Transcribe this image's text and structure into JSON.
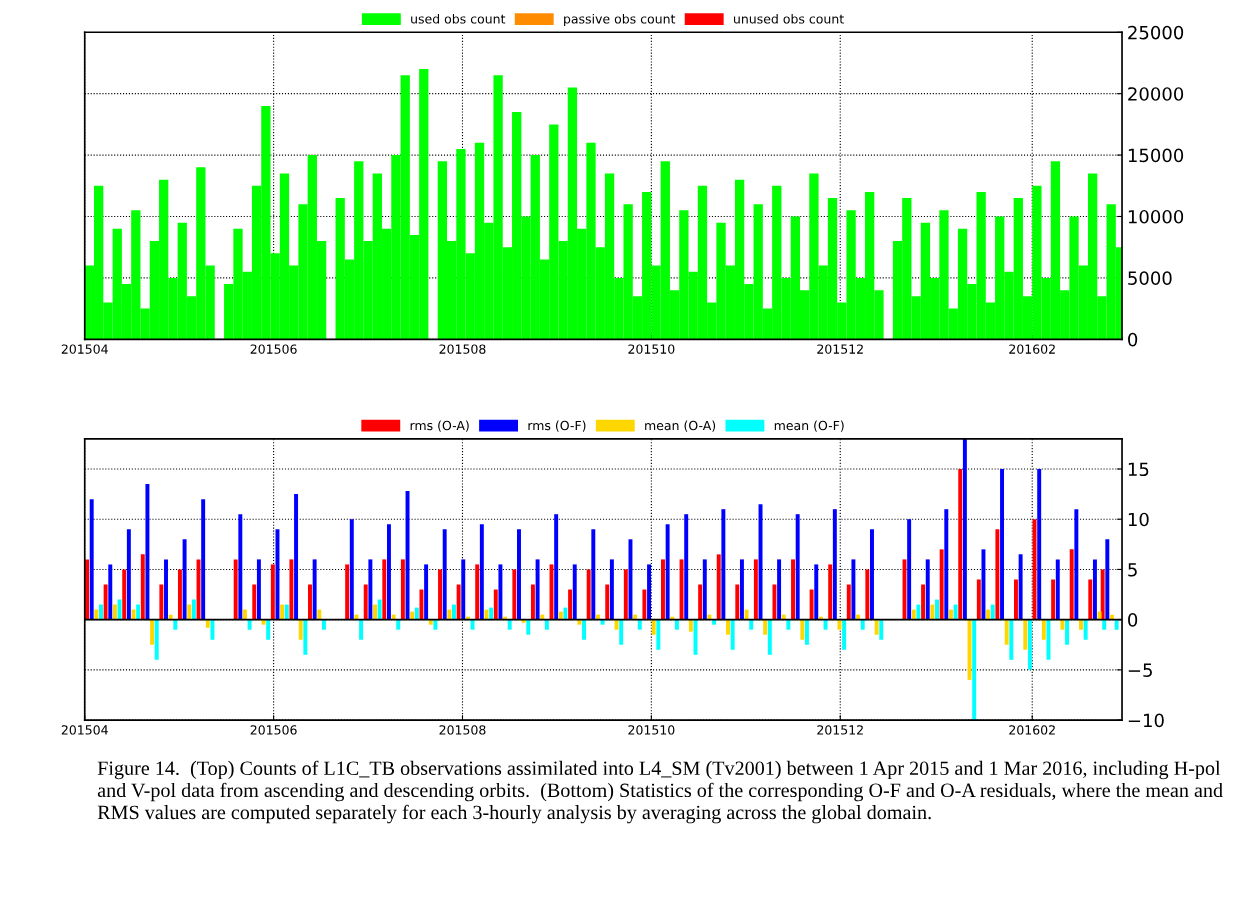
{
  "chart_data": [
    {
      "type": "bar",
      "legend": "top",
      "grid": true,
      "xlim": [
        "2015-04-01",
        "2016-03-01"
      ],
      "xticks": [
        {
          "value": "2015-04-01",
          "label": "201504"
        },
        {
          "value": "2015-06-01",
          "label": "201506"
        },
        {
          "value": "2015-08-01",
          "label": "201508"
        },
        {
          "value": "2015-10-01",
          "label": "201510"
        },
        {
          "value": "2015-12-01",
          "label": "201512"
        },
        {
          "value": "2016-02-01",
          "label": "201602"
        }
      ],
      "ylim": [
        0,
        25000
      ],
      "yticks": [
        0,
        5000,
        10000,
        15000,
        20000,
        25000
      ],
      "x": [
        "2015-04-01",
        "2015-04-04",
        "2015-04-07",
        "2015-04-10",
        "2015-04-13",
        "2015-04-16",
        "2015-04-19",
        "2015-04-22",
        "2015-04-25",
        "2015-04-28",
        "2015-05-01",
        "2015-05-04",
        "2015-05-07",
        "2015-05-10",
        "2015-05-13",
        "2015-05-16",
        "2015-05-19",
        "2015-05-22",
        "2015-05-25",
        "2015-05-28",
        "2015-05-31",
        "2015-06-03",
        "2015-06-06",
        "2015-06-09",
        "2015-06-12",
        "2015-06-15",
        "2015-06-18",
        "2015-06-21",
        "2015-06-24",
        "2015-06-27",
        "2015-06-30",
        "2015-07-03",
        "2015-07-06",
        "2015-07-09",
        "2015-07-12",
        "2015-07-15",
        "2015-07-18",
        "2015-07-21",
        "2015-07-24",
        "2015-07-27",
        "2015-07-30",
        "2015-08-02",
        "2015-08-05",
        "2015-08-08",
        "2015-08-11",
        "2015-08-14",
        "2015-08-17",
        "2015-08-20",
        "2015-08-23",
        "2015-08-26",
        "2015-08-29",
        "2015-09-01",
        "2015-09-04",
        "2015-09-07",
        "2015-09-10",
        "2015-09-13",
        "2015-09-16",
        "2015-09-19",
        "2015-09-22",
        "2015-09-25",
        "2015-09-28",
        "2015-10-01",
        "2015-10-04",
        "2015-10-07",
        "2015-10-10",
        "2015-10-13",
        "2015-10-16",
        "2015-10-19",
        "2015-10-22",
        "2015-10-25",
        "2015-10-28",
        "2015-10-31",
        "2015-11-03",
        "2015-11-06",
        "2015-11-09",
        "2015-11-12",
        "2015-11-15",
        "2015-11-18",
        "2015-11-21",
        "2015-11-24",
        "2015-11-27",
        "2015-11-30",
        "2015-12-03",
        "2015-12-06",
        "2015-12-09",
        "2015-12-12",
        "2015-12-15",
        "2015-12-18",
        "2015-12-21",
        "2015-12-24",
        "2015-12-27",
        "2015-12-30",
        "2016-01-02",
        "2016-01-05",
        "2016-01-08",
        "2016-01-11",
        "2016-01-14",
        "2016-01-17",
        "2016-01-20",
        "2016-01-23",
        "2016-01-26",
        "2016-01-29",
        "2016-02-01",
        "2016-02-04",
        "2016-02-07",
        "2016-02-10",
        "2016-02-13",
        "2016-02-16",
        "2016-02-19",
        "2016-02-22",
        "2016-02-25",
        "2016-02-28"
      ],
      "series": [
        {
          "name": "used obs count",
          "color": "#00ff00",
          "values": [
            6000,
            12500,
            3000,
            9000,
            4500,
            10500,
            2500,
            8000,
            13000,
            5000,
            9500,
            3500,
            14000,
            6000,
            null,
            4500,
            9000,
            5500,
            12500,
            19000,
            7000,
            13500,
            6000,
            11000,
            15000,
            8000,
            null,
            11500,
            6500,
            14500,
            8000,
            13500,
            9000,
            15000,
            21500,
            8500,
            22000,
            null,
            14500,
            8000,
            15500,
            7000,
            16000,
            9500,
            21500,
            7500,
            18500,
            10000,
            15000,
            6500,
            17500,
            8000,
            20500,
            9000,
            16000,
            7500,
            13500,
            5000,
            11000,
            3500,
            12000,
            6000,
            14500,
            4000,
            10500,
            5500,
            12500,
            3000,
            9500,
            6000,
            13000,
            4500,
            11000,
            2500,
            12500,
            5000,
            10000,
            4000,
            13500,
            6000,
            11500,
            3000,
            10500,
            5000,
            12000,
            4000,
            null,
            8000,
            11500,
            3500,
            9500,
            5000,
            10500,
            2500,
            9000,
            4500,
            12000,
            3000,
            10000,
            5500,
            11500,
            3500,
            12500,
            5000,
            14500,
            4000,
            10000,
            6000,
            13500,
            3500,
            11000,
            7500
          ]
        },
        {
          "name": "passive obs count",
          "color": "#ff8c00",
          "x": [
            "2015-04-01"
          ],
          "values": [
            0
          ]
        },
        {
          "name": "unused obs count",
          "color": "#ff0000",
          "x": [
            "2015-04-01"
          ],
          "values": [
            0
          ]
        }
      ]
    },
    {
      "type": "bar",
      "legend": "top",
      "grid": true,
      "xlim": [
        "2015-04-01",
        "2016-03-01"
      ],
      "xticks": [
        {
          "value": "2015-04-01",
          "label": "201504"
        },
        {
          "value": "2015-06-01",
          "label": "201506"
        },
        {
          "value": "2015-08-01",
          "label": "201508"
        },
        {
          "value": "2015-10-01",
          "label": "201510"
        },
        {
          "value": "2015-12-01",
          "label": "201512"
        },
        {
          "value": "2016-02-01",
          "label": "201602"
        }
      ],
      "ylim": [
        -10,
        18
      ],
      "yticks": [
        {
          "value": -10,
          "label": "−10"
        },
        {
          "value": -5,
          "label": "−5"
        },
        0,
        5,
        10,
        15
      ],
      "ref_lines": [
        {
          "axis": "y",
          "value": 0,
          "color": "#000000"
        }
      ],
      "annotations": [
        "Figure 14.  (Top) Counts of L1C_TB observations assimilated into L4_SM (Tv2001) between 1 Apr 2015 and 1 Mar 2016, including H-pol and V-pol data from ascending and descending orbits.  (Bottom) Statistics of the corresponding O-F and O-A residuals, where the mean and RMS values are computed separately for each 3-hourly analysis by averaging across the global domain."
      ],
      "x": [
        "2015-04-04",
        "2015-04-10",
        "2015-04-16",
        "2015-04-22",
        "2015-04-28",
        "2015-05-04",
        "2015-05-10",
        "2015-05-16",
        "2015-05-22",
        "2015-05-28",
        "2015-06-03",
        "2015-06-09",
        "2015-06-15",
        "2015-06-21",
        "2015-06-27",
        "2015-07-03",
        "2015-07-09",
        "2015-07-15",
        "2015-07-21",
        "2015-07-27",
        "2015-08-02",
        "2015-08-08",
        "2015-08-14",
        "2015-08-20",
        "2015-08-26",
        "2015-09-01",
        "2015-09-07",
        "2015-09-13",
        "2015-09-19",
        "2015-09-25",
        "2015-10-01",
        "2015-10-07",
        "2015-10-13",
        "2015-10-19",
        "2015-10-25",
        "2015-10-31",
        "2015-11-06",
        "2015-11-12",
        "2015-11-18",
        "2015-11-24",
        "2015-11-30",
        "2015-12-06",
        "2015-12-12",
        "2015-12-18",
        "2015-12-24",
        "2015-12-30",
        "2016-01-05",
        "2016-01-11",
        "2016-01-17",
        "2016-01-23",
        "2016-01-29",
        "2016-02-04",
        "2016-02-10",
        "2016-02-16",
        "2016-02-22",
        "2016-02-26"
      ],
      "series": [
        {
          "name": "rms (O-A)",
          "color": "#ff0000",
          "values": [
            6,
            3.5,
            5,
            6.5,
            3.5,
            5,
            6,
            null,
            6,
            3.5,
            5.5,
            6,
            3.5,
            null,
            5.5,
            3.5,
            6,
            6,
            3,
            5,
            3.5,
            5.5,
            3,
            5,
            3.5,
            5.5,
            3,
            5,
            3.5,
            5,
            3,
            6,
            6,
            3.5,
            6.5,
            3.5,
            6,
            3.5,
            6,
            3,
            5.5,
            3.5,
            5,
            null,
            6,
            3.5,
            7,
            15,
            4,
            9,
            4,
            10,
            4,
            7,
            4,
            5
          ]
        },
        {
          "name": "rms (O-F)",
          "color": "#0000ff",
          "values": [
            12,
            5.5,
            9,
            13.5,
            6,
            8,
            12,
            null,
            10.5,
            6,
            9,
            12.5,
            6,
            null,
            10,
            6,
            9.5,
            12.8,
            5.5,
            9,
            6,
            9.5,
            5.5,
            9,
            6,
            10.5,
            5.5,
            9,
            6,
            8,
            5.5,
            9.5,
            10.5,
            6,
            11,
            6,
            11.5,
            6,
            10.5,
            5.5,
            11,
            6,
            9,
            null,
            10,
            6,
            11,
            18,
            7,
            15,
            6.5,
            15,
            6,
            11,
            6,
            8
          ]
        },
        {
          "name": "mean (O-A)",
          "color": "#ffd700",
          "values": [
            1,
            1.5,
            1,
            -2.5,
            0.5,
            1.5,
            -0.8,
            null,
            1,
            -0.5,
            1.5,
            -2,
            1,
            null,
            0.5,
            1.5,
            0.5,
            0.8,
            -0.5,
            1,
            0.3,
            1,
            0.3,
            -0.3,
            0.5,
            0.8,
            -0.5,
            0.5,
            -1,
            0.5,
            -1.5,
            0.3,
            -1.2,
            0.5,
            -1.5,
            1,
            -1.5,
            0.5,
            -2,
            0.3,
            -1,
            0.5,
            -1.5,
            null,
            1,
            1.5,
            1,
            -6,
            1,
            -2.5,
            -3,
            -2,
            -1,
            -1,
            0.8,
            0.5
          ]
        },
        {
          "name": "mean (O-F)",
          "color": "#00ffff",
          "values": [
            1.5,
            2,
            1.5,
            -4,
            -1,
            2,
            -2,
            null,
            -1,
            -2,
            1.5,
            -3.5,
            -1,
            null,
            -2,
            2,
            -1,
            1.2,
            -1,
            1.5,
            -1,
            1.2,
            -1,
            -1.5,
            -1,
            1.2,
            -2,
            -0.5,
            -2.5,
            -1,
            -3,
            -1,
            -3.5,
            -0.5,
            -3,
            -1,
            -3.5,
            -1,
            -2.5,
            -1,
            -3,
            -1,
            -2,
            null,
            1.5,
            2,
            1.5,
            -10,
            1.5,
            -4,
            -5,
            -4,
            -2.5,
            -2,
            -1,
            -1
          ]
        }
      ]
    }
  ]
}
